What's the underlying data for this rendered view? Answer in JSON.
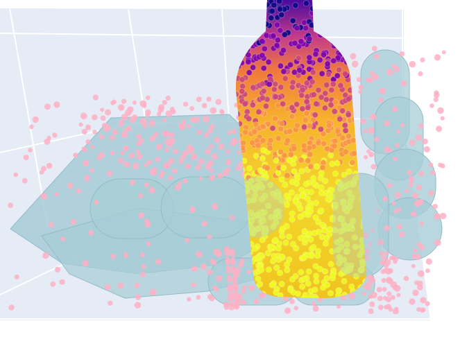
{
  "scene": {
    "kind": "3d-scatter-scene",
    "objects": [
      "bottle-point-cloud",
      "robot-hand-mesh",
      "hand-contact-points"
    ],
    "colors": {
      "background": "#ffffff",
      "axis_planes": "#e5ecf6",
      "grid": "#ffffff",
      "hand_mesh": "#a7cdd6",
      "hand_points": "#ffb0c4",
      "bottle_colorscale": [
        "#0d0887",
        "#7e03a8",
        "#cc4778",
        "#f89540",
        "#f0f921"
      ]
    }
  }
}
